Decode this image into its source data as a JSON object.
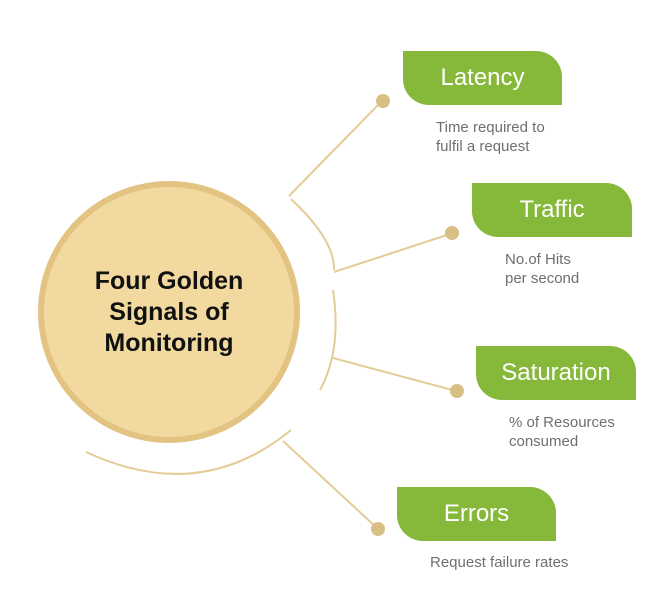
{
  "center": {
    "title": "Four Golden Signals of Monitoring"
  },
  "signals": [
    {
      "label": "Latency",
      "description": "Time required to\nfulfil a request"
    },
    {
      "label": "Traffic",
      "description": "No.of Hits\nper second"
    },
    {
      "label": "Saturation",
      "description": "% of Resources\nconsumed"
    },
    {
      "label": "Errors",
      "description": "Request failure rates"
    }
  ],
  "colors": {
    "badge": "#86b83a",
    "circle_fill": "#f1d99f",
    "circle_border": "#e2c382",
    "connector": "#e3cc96",
    "dot": "#d8bf84"
  }
}
